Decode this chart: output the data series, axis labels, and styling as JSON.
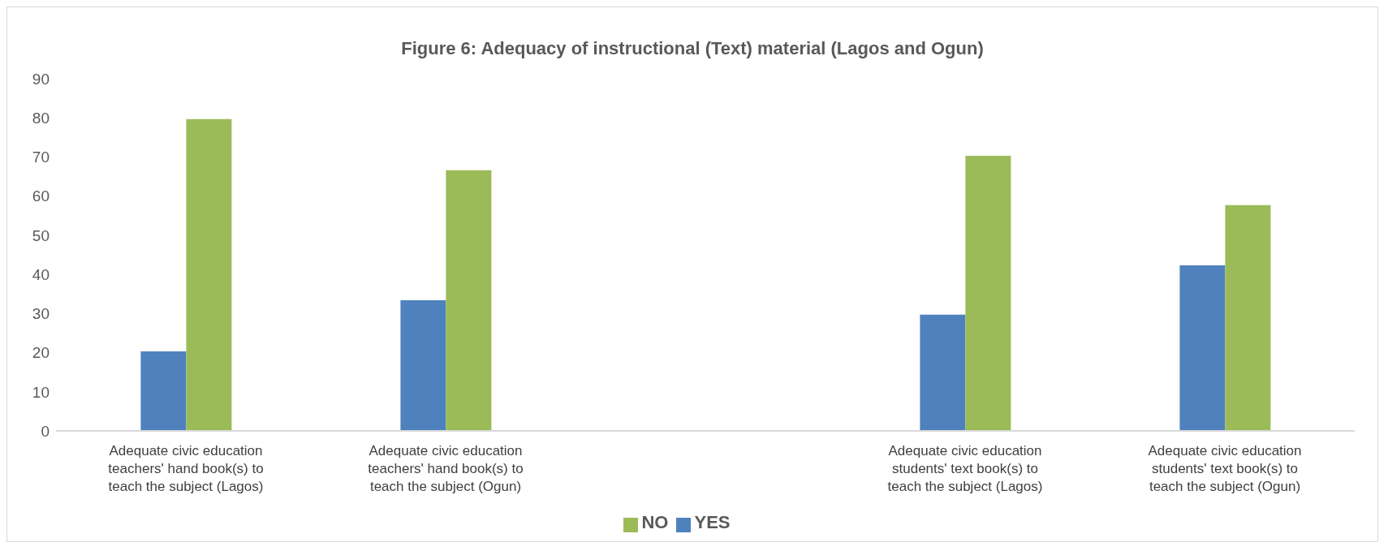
{
  "chart_data": {
    "type": "bar",
    "title": "Figure 6: Adequacy of instructional (Text) material (Lagos and Ogun)",
    "categories": [
      "Adequate civic education teachers' hand book(s) to teach the subject (Lagos)",
      "Adequate civic education teachers' hand book(s) to teach the subject (Ogun)",
      null,
      "Adequate civic education students' text book(s) to teach the subject (Lagos)",
      "Adequate civic education students' text book(s) to teach the subject (Ogun)"
    ],
    "series": [
      {
        "name": "YES",
        "color": "#4f81bd",
        "values": [
          20.3,
          33.4,
          null,
          29.7,
          42.3
        ]
      },
      {
        "name": "NO",
        "color": "#9bbb59",
        "values": [
          79.7,
          66.6,
          null,
          70.3,
          57.7
        ]
      }
    ],
    "ylim": [
      0,
      90
    ],
    "yticks": [
      0,
      10,
      20,
      30,
      40,
      50,
      60,
      70,
      80,
      90
    ],
    "grid": false,
    "legend": "bottom"
  }
}
